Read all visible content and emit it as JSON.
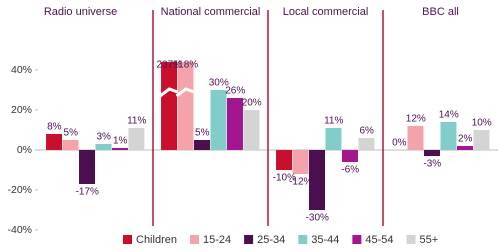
{
  "chart_data": {
    "type": "bar",
    "categories": [
      "Radio universe",
      "National commercial",
      "Local commercial",
      "BBC all"
    ],
    "series": [
      {
        "name": "Children",
        "color": "#c8102e",
        "values": [
          8,
          237,
          -10,
          0
        ],
        "value_labels": [
          "8%",
          "237%",
          "-10%",
          "0%"
        ]
      },
      {
        "name": "15-24",
        "color": "#f4a3ab",
        "values": [
          5,
          118,
          -12,
          12
        ],
        "value_labels": [
          "5%",
          "118%",
          "-12%",
          "12%"
        ]
      },
      {
        "name": "25-34",
        "color": "#4b0f4f",
        "values": [
          -17,
          5,
          -30,
          -3
        ],
        "value_labels": [
          "-17%",
          "5%",
          "-30%",
          "-3%"
        ]
      },
      {
        "name": "35-44",
        "color": "#82cdc9",
        "values": [
          3,
          30,
          11,
          14
        ],
        "value_labels": [
          "3%",
          "30%",
          "11%",
          "14%"
        ]
      },
      {
        "name": "45-54",
        "color": "#a3168f",
        "values": [
          1,
          26,
          -6,
          2
        ],
        "value_labels": [
          "1%",
          "26%",
          "-6%",
          "2%"
        ]
      },
      {
        "name": "55+",
        "color": "#d4d4d4",
        "values": [
          11,
          20,
          6,
          10
        ],
        "value_labels": [
          "11%",
          "20%",
          "6%",
          "10%"
        ]
      }
    ],
    "ylim": [
      -40,
      40
    ],
    "yticks": [
      {
        "value": -40,
        "label": "-40%"
      },
      {
        "value": -20,
        "label": "-20%"
      },
      {
        "value": 0,
        "label": "0%"
      },
      {
        "value": 20,
        "label": "20%"
      },
      {
        "value": 40,
        "label": "40%"
      }
    ],
    "grid": false
  }
}
